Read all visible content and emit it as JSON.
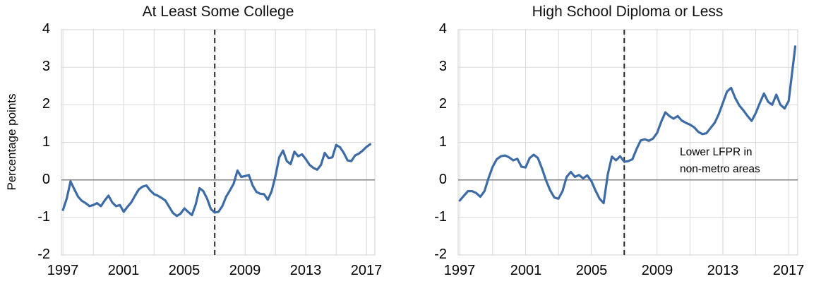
{
  "colors": {
    "line_blue": "#3C6BA6",
    "gridline": "#D9D9D9",
    "plot_border": "#D2D2D2",
    "zero_line": "#7F7F7F",
    "dashed_line": "#262626",
    "text": "#000000",
    "background": "#FFFFFF"
  },
  "chart_data": [
    {
      "type": "line",
      "title": "At Least Some College",
      "ylabel": "Percentage points",
      "xlabel": "",
      "xlim": [
        1996.9,
        2017.55
      ],
      "ylim": [
        -2,
        4
      ],
      "grid": true,
      "x_grid_step_years": 2,
      "x_tick_labels": [
        "1997",
        "2001",
        "2005",
        "2009",
        "2013",
        "2017"
      ],
      "y_tick_labels": [
        "-2",
        "-1",
        "0",
        "1",
        "2",
        "3",
        "4"
      ],
      "vline_year": 2007,
      "series": [
        {
          "color": "#3C6BA6",
          "x": [
            1997.0,
            1997.25,
            1997.5,
            1997.75,
            1998.0,
            1998.25,
            1998.5,
            1998.75,
            1999.0,
            1999.25,
            1999.5,
            1999.75,
            2000.0,
            2000.25,
            2000.5,
            2000.75,
            2001.0,
            2001.25,
            2001.5,
            2001.75,
            2002.0,
            2002.25,
            2002.5,
            2002.75,
            2003.0,
            2003.25,
            2003.5,
            2003.75,
            2004.0,
            2004.25,
            2004.5,
            2004.75,
            2005.0,
            2005.25,
            2005.5,
            2005.75,
            2006.0,
            2006.25,
            2006.5,
            2006.75,
            2007.0,
            2007.25,
            2007.5,
            2007.75,
            2008.0,
            2008.25,
            2008.5,
            2008.75,
            2009.0,
            2009.25,
            2009.5,
            2009.75,
            2010.0,
            2010.25,
            2010.5,
            2010.75,
            2011.0,
            2011.25,
            2011.5,
            2011.75,
            2012.0,
            2012.25,
            2012.5,
            2012.75,
            2013.0,
            2013.25,
            2013.5,
            2013.75,
            2014.0,
            2014.25,
            2014.5,
            2014.75,
            2015.0,
            2015.25,
            2015.5,
            2015.75,
            2016.0,
            2016.25,
            2016.5,
            2016.75,
            2017.0,
            2017.25
          ],
          "values": [
            -0.8,
            -0.5,
            -0.04,
            -0.25,
            -0.45,
            -0.56,
            -0.62,
            -0.7,
            -0.67,
            -0.62,
            -0.7,
            -0.55,
            -0.42,
            -0.6,
            -0.7,
            -0.67,
            -0.85,
            -0.72,
            -0.6,
            -0.42,
            -0.25,
            -0.18,
            -0.15,
            -0.28,
            -0.38,
            -0.42,
            -0.48,
            -0.55,
            -0.72,
            -0.88,
            -0.96,
            -0.9,
            -0.76,
            -0.85,
            -0.94,
            -0.65,
            -0.22,
            -0.3,
            -0.5,
            -0.78,
            -0.87,
            -0.85,
            -0.7,
            -0.45,
            -0.28,
            -0.1,
            0.25,
            0.08,
            0.1,
            0.13,
            -0.15,
            -0.32,
            -0.37,
            -0.38,
            -0.53,
            -0.3,
            0.1,
            0.6,
            0.78,
            0.5,
            0.42,
            0.75,
            0.63,
            0.68,
            0.55,
            0.4,
            0.32,
            0.27,
            0.4,
            0.72,
            0.58,
            0.6,
            0.93,
            0.87,
            0.72,
            0.52,
            0.5,
            0.65,
            0.7,
            0.78,
            0.88,
            0.95
          ]
        }
      ]
    },
    {
      "type": "line",
      "title": "High School Diploma or Less",
      "ylabel": "",
      "xlabel": "",
      "xlim": [
        1996.9,
        2017.55
      ],
      "ylim": [
        -2,
        4
      ],
      "grid": true,
      "x_grid_step_years": 2,
      "x_tick_labels": [
        "1997",
        "2001",
        "2005",
        "2009",
        "2013",
        "2017"
      ],
      "y_tick_labels": [
        "-2",
        "-1",
        "0",
        "1",
        "2",
        "3",
        "4"
      ],
      "vline_year": 2007,
      "annotation": {
        "lines": [
          "Lower LFPR in",
          "non-metro areas"
        ],
        "anchor_year": 2010.4,
        "anchor_value": 0.95
      },
      "series": [
        {
          "color": "#3C6BA6",
          "x": [
            1997.0,
            1997.25,
            1997.5,
            1997.75,
            1998.0,
            1998.25,
            1998.5,
            1998.75,
            1999.0,
            1999.25,
            1999.5,
            1999.75,
            2000.0,
            2000.25,
            2000.5,
            2000.75,
            2001.0,
            2001.25,
            2001.5,
            2001.75,
            2002.0,
            2002.25,
            2002.5,
            2002.75,
            2003.0,
            2003.25,
            2003.5,
            2003.75,
            2004.0,
            2004.25,
            2004.5,
            2004.75,
            2005.0,
            2005.25,
            2005.5,
            2005.75,
            2006.0,
            2006.25,
            2006.5,
            2006.75,
            2007.0,
            2007.25,
            2007.5,
            2007.75,
            2008.0,
            2008.25,
            2008.5,
            2008.75,
            2009.0,
            2009.25,
            2009.5,
            2009.75,
            2010.0,
            2010.25,
            2010.5,
            2010.75,
            2011.0,
            2011.25,
            2011.5,
            2011.75,
            2012.0,
            2012.25,
            2012.5,
            2012.75,
            2013.0,
            2013.25,
            2013.5,
            2013.75,
            2014.0,
            2014.25,
            2014.5,
            2014.75,
            2015.0,
            2015.25,
            2015.5,
            2015.75,
            2016.0,
            2016.25,
            2016.5,
            2016.75,
            2017.0,
            2017.25,
            2017.4
          ],
          "values": [
            -0.55,
            -0.42,
            -0.3,
            -0.3,
            -0.35,
            -0.45,
            -0.3,
            0.05,
            0.35,
            0.55,
            0.63,
            0.65,
            0.6,
            0.52,
            0.56,
            0.35,
            0.33,
            0.58,
            0.67,
            0.58,
            0.3,
            -0.02,
            -0.28,
            -0.47,
            -0.5,
            -0.3,
            0.08,
            0.21,
            0.08,
            0.13,
            0.04,
            0.12,
            -0.03,
            -0.28,
            -0.5,
            -0.62,
            0.15,
            0.62,
            0.52,
            0.63,
            0.48,
            0.5,
            0.55,
            0.82,
            1.05,
            1.08,
            1.04,
            1.1,
            1.25,
            1.55,
            1.8,
            1.7,
            1.63,
            1.7,
            1.58,
            1.52,
            1.47,
            1.4,
            1.28,
            1.22,
            1.24,
            1.38,
            1.52,
            1.75,
            2.05,
            2.35,
            2.45,
            2.18,
            1.98,
            1.85,
            1.7,
            1.57,
            1.78,
            2.05,
            2.3,
            2.08,
            2.0,
            2.27,
            2.0,
            1.9,
            2.1,
            3.0,
            3.55
          ]
        }
      ]
    }
  ]
}
